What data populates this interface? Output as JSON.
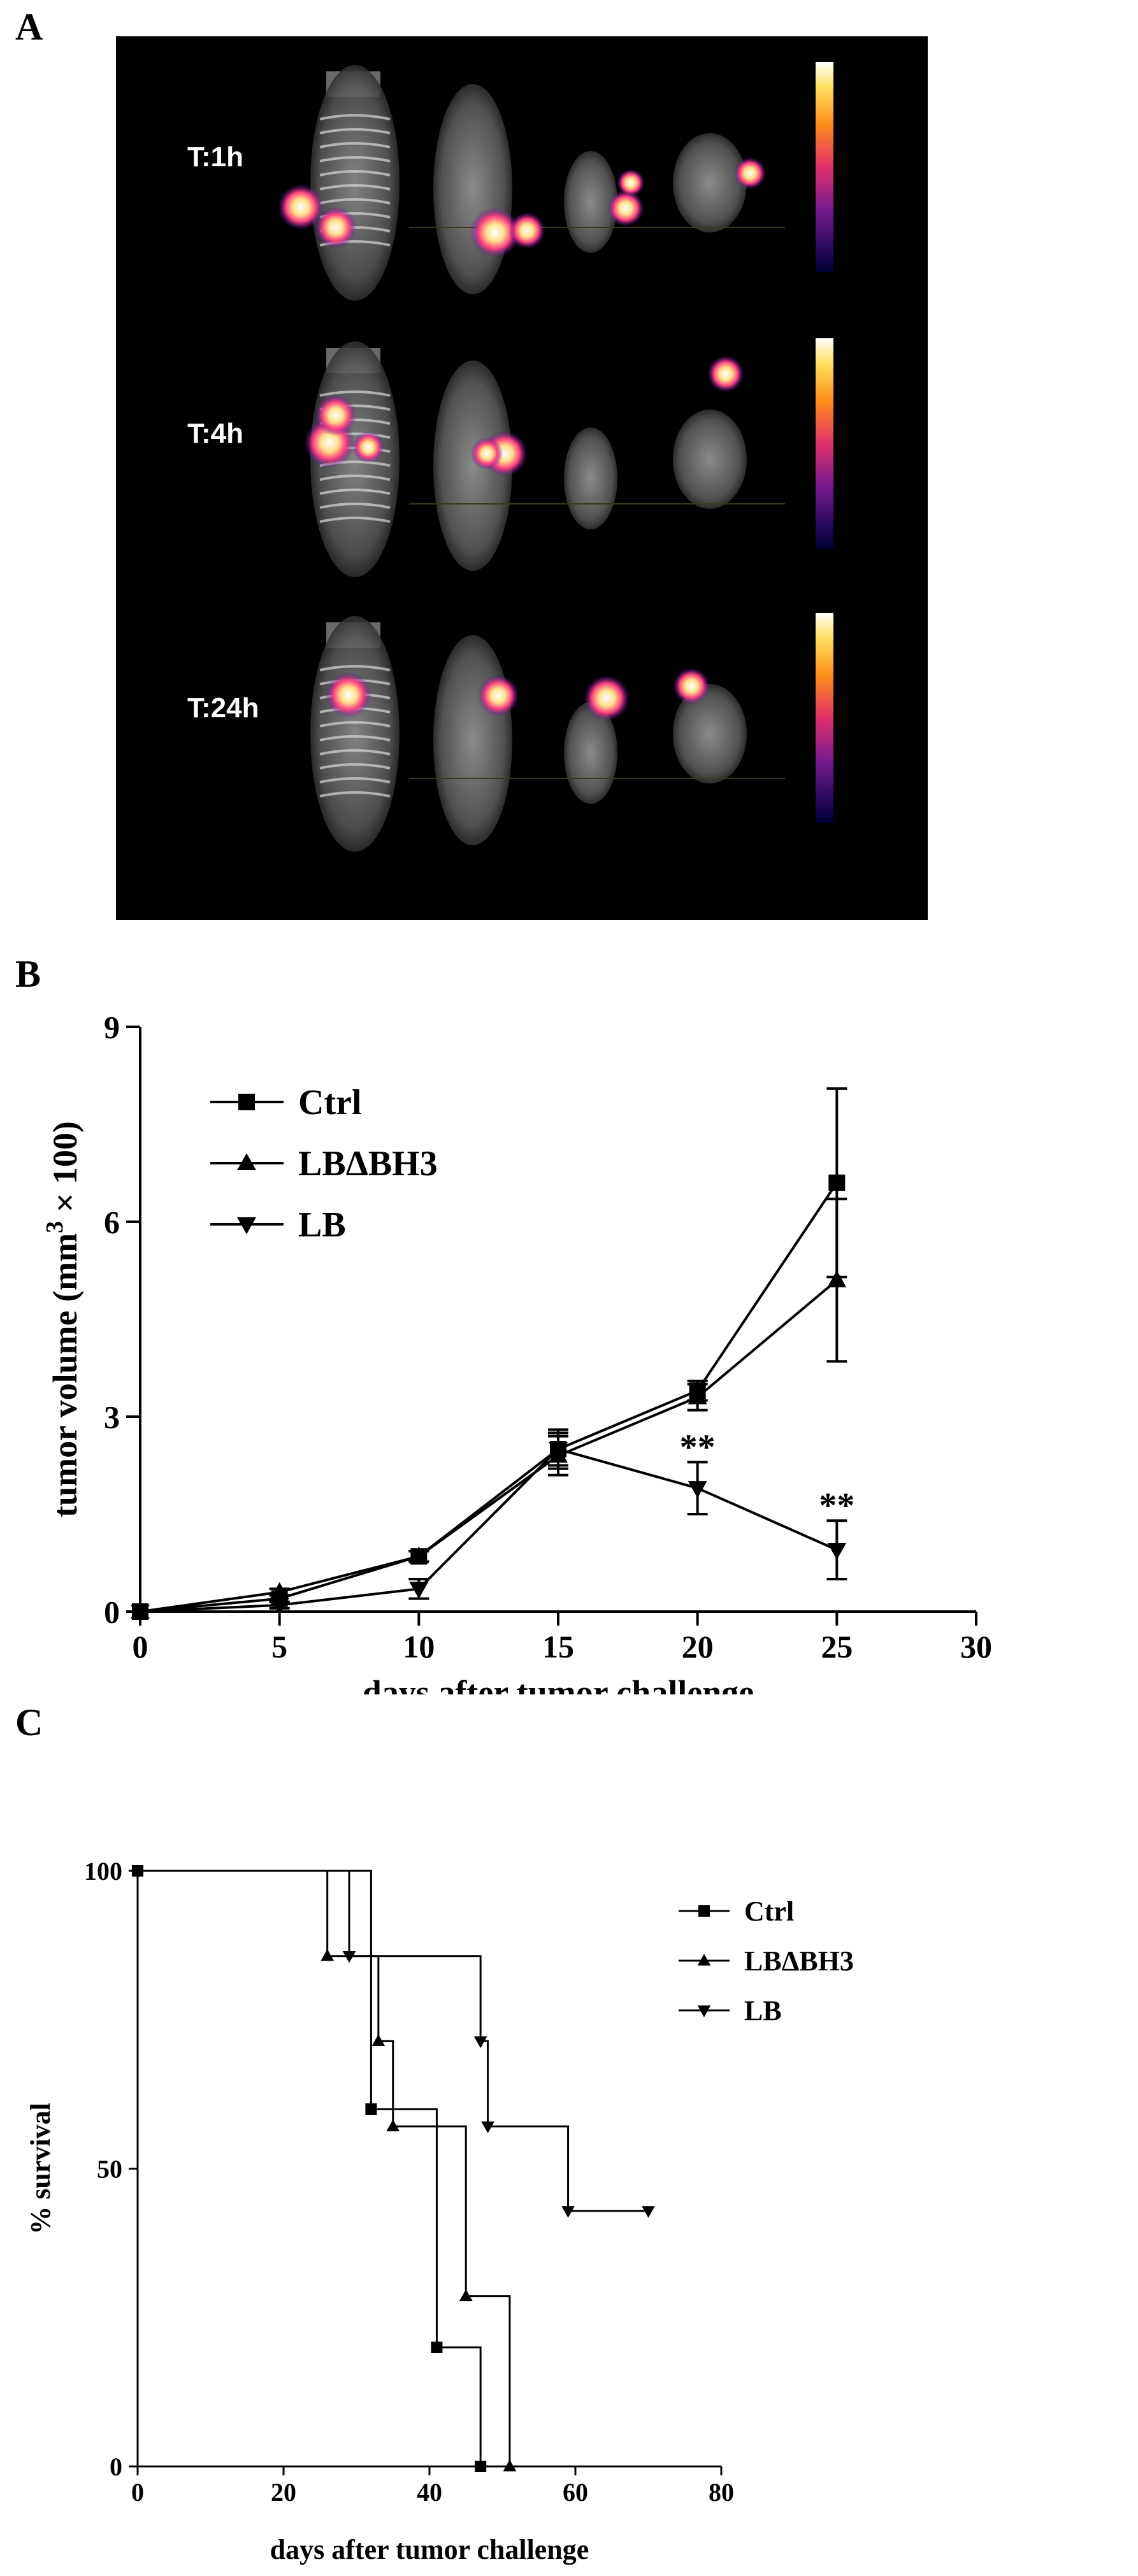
{
  "panel_labels": {
    "a": "A",
    "b": "B",
    "c": "C"
  },
  "imaging": {
    "time_points": [
      "T:1h",
      "T:4h",
      "T:24h"
    ]
  },
  "chart_data": [
    {
      "id": "B",
      "type": "line",
      "xlabel": "days after tumor challenge",
      "ylabel_parts": [
        "tumor volume (mm",
        "3",
        " × 100)"
      ],
      "xlim": [
        0,
        30
      ],
      "ylim": [
        0,
        9
      ],
      "xticks": [
        0,
        5,
        10,
        15,
        20,
        25,
        30
      ],
      "yticks": [
        0,
        3,
        6,
        9
      ],
      "legend_position": "top-left",
      "series": [
        {
          "name": "Ctrl",
          "marker": "square",
          "x": [
            0,
            5,
            10,
            15,
            20,
            25
          ],
          "y": [
            0,
            0.2,
            0.85,
            2.5,
            3.4,
            6.6
          ],
          "err": [
            0,
            0.05,
            0.08,
            0.25,
            0.15,
            1.45
          ]
        },
        {
          "name": "LBΔBH3",
          "marker": "triangle-up",
          "x": [
            0,
            5,
            10,
            15,
            20,
            25
          ],
          "y": [
            0,
            0.3,
            0.85,
            2.4,
            3.3,
            5.1
          ],
          "err": [
            0,
            0.05,
            0.08,
            0.3,
            0.2,
            1.25
          ]
        },
        {
          "name": "LB",
          "marker": "triangle-down",
          "x": [
            0,
            5,
            10,
            15,
            20,
            25
          ],
          "y": [
            0,
            0.1,
            0.35,
            2.5,
            1.9,
            0.95
          ],
          "err": [
            0,
            0.05,
            0.15,
            0.3,
            0.4,
            0.45
          ]
        }
      ],
      "annotations": [
        {
          "x": 20,
          "y": 2.35,
          "text": "**"
        },
        {
          "x": 25,
          "y": 1.45,
          "text": "**"
        }
      ]
    },
    {
      "id": "C",
      "type": "line",
      "step": true,
      "xlabel": "days after tumor challenge",
      "ylabel": "% survival",
      "xlim": [
        0,
        80
      ],
      "ylim": [
        0,
        100
      ],
      "xticks": [
        0,
        20,
        40,
        60,
        80
      ],
      "yticks": [
        0,
        50,
        100
      ],
      "legend_position": "top-right",
      "series": [
        {
          "name": "Ctrl",
          "marker": "square",
          "x": [
            0,
            32,
            41,
            47
          ],
          "y": [
            100,
            60,
            20,
            0
          ]
        },
        {
          "name": "LBΔBH3",
          "marker": "triangle-up",
          "x": [
            0,
            26,
            33,
            35,
            45,
            51
          ],
          "y": [
            100,
            85.7,
            71.4,
            57.1,
            28.6,
            0
          ]
        },
        {
          "name": "LB",
          "marker": "triangle-down",
          "x": [
            0,
            29,
            47,
            48,
            59,
            70
          ],
          "y": [
            100,
            85.7,
            71.4,
            57.1,
            42.9,
            42.9
          ]
        }
      ]
    }
  ]
}
